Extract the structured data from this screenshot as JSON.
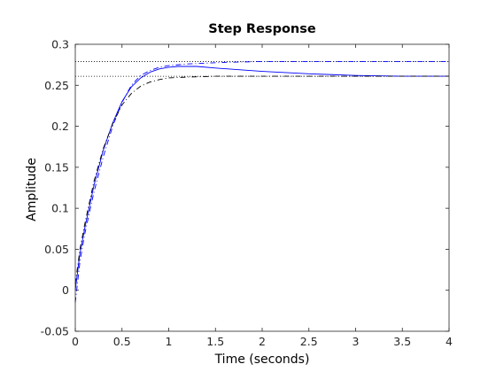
{
  "chart_data": {
    "type": "line",
    "title": "Step Response",
    "xlabel": "Time (seconds)",
    "ylabel": "Amplitude",
    "xlim": [
      0,
      4
    ],
    "ylim": [
      -0.05,
      0.3
    ],
    "xticks": [
      0,
      0.5,
      1,
      1.5,
      2,
      2.5,
      3,
      3.5,
      4
    ],
    "xtick_labels": [
      "0",
      "0.5",
      "1",
      "1.5",
      "2",
      "2.5",
      "3",
      "3.5",
      "4"
    ],
    "yticks": [
      -0.05,
      0,
      0.05,
      0.1,
      0.15,
      0.2,
      0.25,
      0.3
    ],
    "ytick_labels": [
      "-0.05",
      "0",
      "0.05",
      "0.1",
      "0.15",
      "0.2",
      "0.25",
      "0.3"
    ],
    "grid": false,
    "series": [
      {
        "style": "solid",
        "color": "#0000ff",
        "x": [
          0,
          0.05,
          0.1,
          0.2,
          0.3,
          0.4,
          0.5,
          0.6,
          0.7,
          0.8,
          0.9,
          1.0,
          1.1,
          1.2,
          1.3,
          1.5,
          1.75,
          2.0,
          2.5,
          3.0,
          3.5,
          4.0
        ],
        "y": [
          0,
          0.045,
          0.075,
          0.128,
          0.171,
          0.204,
          0.23,
          0.248,
          0.259,
          0.266,
          0.27,
          0.272,
          0.273,
          0.273,
          0.273,
          0.271,
          0.269,
          0.267,
          0.264,
          0.262,
          0.261,
          0.261
        ]
      },
      {
        "style": "dashdot",
        "color": "#0000ff",
        "x": [
          0,
          0.05,
          0.1,
          0.2,
          0.3,
          0.4,
          0.5,
          0.6,
          0.7,
          0.8,
          0.9,
          1.0,
          1.2,
          1.4,
          1.6,
          2.0,
          2.5,
          3.0,
          3.5,
          4.0
        ],
        "y": [
          -0.015,
          0.035,
          0.068,
          0.12,
          0.163,
          0.2,
          0.229,
          0.25,
          0.262,
          0.268,
          0.272,
          0.274,
          0.276,
          0.277,
          0.278,
          0.279,
          0.279,
          0.279,
          0.279,
          0.279
        ]
      },
      {
        "style": "dashdot",
        "color": "#000000",
        "x": [
          0,
          0.05,
          0.1,
          0.2,
          0.3,
          0.4,
          0.5,
          0.6,
          0.7,
          0.8,
          0.9,
          1.0,
          1.2,
          1.5,
          2.0,
          2.5,
          3.0,
          3.5,
          4.0
        ],
        "y": [
          0.008,
          0.05,
          0.08,
          0.133,
          0.173,
          0.203,
          0.226,
          0.24,
          0.249,
          0.254,
          0.257,
          0.259,
          0.26,
          0.261,
          0.261,
          0.261,
          0.261,
          0.261,
          0.261
        ]
      }
    ],
    "reference_lines": [
      {
        "style": "dotted",
        "color": "#000000",
        "y": 0.279
      },
      {
        "style": "dotted",
        "color": "#000000",
        "y": 0.261
      }
    ]
  }
}
